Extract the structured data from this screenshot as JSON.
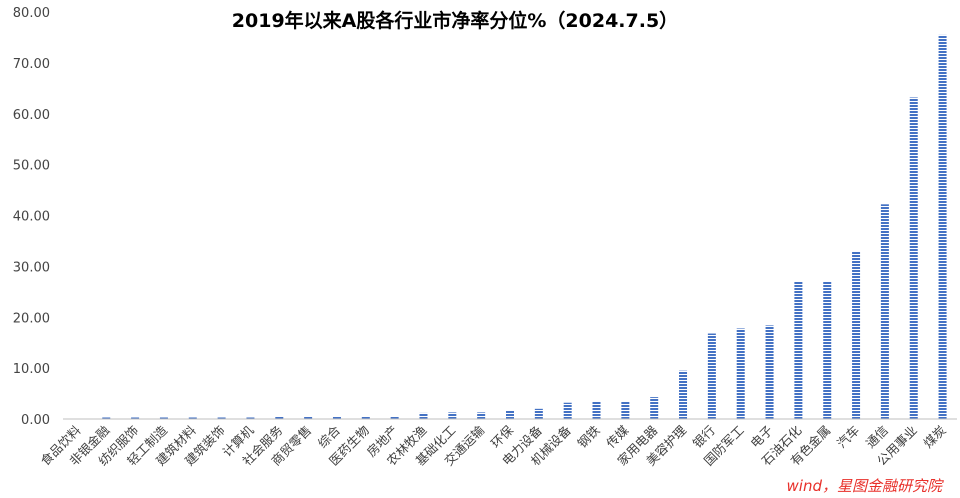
{
  "colors": {
    "bar": "#4472c4",
    "axis": "#bfbfbf",
    "watermark": "#e8302a"
  },
  "watermark": "wind，星图金融研究院",
  "chart_data": {
    "type": "bar",
    "title": "2019年以来A股各行业市净率分位%（2024.7.5）",
    "xlabel": "",
    "ylabel": "",
    "ylim": [
      0,
      80
    ],
    "yticks": [
      "0.00",
      "10.00",
      "20.00",
      "30.00",
      "40.00",
      "50.00",
      "60.00",
      "70.00",
      "80.00"
    ],
    "grid": false,
    "legend": "none",
    "bar_fill": "horizontal-stripes",
    "categories": [
      "食品饮料",
      "非银金融",
      "纺织服饰",
      "轻工制造",
      "建筑材料",
      "建筑装饰",
      "计算机",
      "社会服务",
      "商贸零售",
      "综合",
      "医药生物",
      "房地产",
      "农林牧渔",
      "基础化工",
      "交通运输",
      "环保",
      "电力设备",
      "机械设备",
      "钢铁",
      "传媒",
      "家用电器",
      "美容护理",
      "银行",
      "国防军工",
      "电子",
      "石油石化",
      "有色金属",
      "汽车",
      "通信",
      "公用事业",
      "煤炭"
    ],
    "values": [
      0.0,
      0.3,
      0.3,
      0.3,
      0.3,
      0.3,
      0.3,
      0.4,
      0.4,
      0.4,
      0.4,
      0.4,
      1.2,
      1.3,
      1.3,
      1.7,
      2.0,
      3.2,
      3.5,
      3.5,
      4.3,
      9.5,
      16.8,
      17.8,
      18.4,
      27.0,
      27.0,
      33.0,
      42.2,
      63.2,
      75.5
    ]
  }
}
